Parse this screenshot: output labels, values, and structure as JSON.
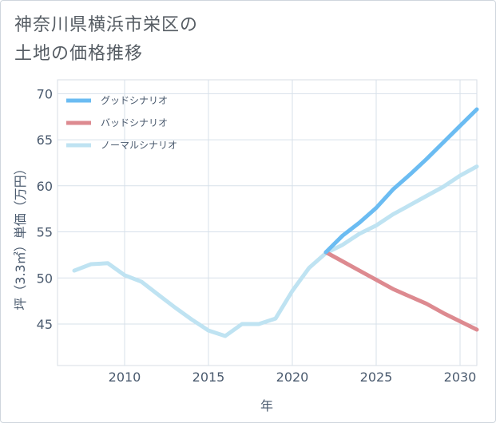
{
  "title": {
    "line1": "神奈川県横浜市栄区の",
    "line2": "土地の価格推移"
  },
  "chart_data": {
    "type": "line",
    "xlabel": "年",
    "ylabel": "坪（3.3㎡）単価（万円）",
    "xlim": [
      2006,
      2031
    ],
    "ylim": [
      40.5,
      71.5
    ],
    "xticks": [
      2010,
      2015,
      2020,
      2025,
      2030
    ],
    "yticks": [
      45,
      50,
      55,
      60,
      65,
      70
    ],
    "grid": true,
    "legend_position": "top-left",
    "series": [
      {
        "name": "グッドシナリオ",
        "color": "#6bbcf2",
        "x": [
          2022,
          2023,
          2024,
          2025,
          2026,
          2027,
          2028,
          2029,
          2030,
          2031
        ],
        "y": [
          52.8,
          54.6,
          56.0,
          57.6,
          59.6,
          61.2,
          62.9,
          64.7,
          66.5,
          68.3
        ]
      },
      {
        "name": "バッドシナリオ",
        "color": "#dd8a90",
        "x": [
          2022,
          2023,
          2024,
          2025,
          2026,
          2027,
          2028,
          2029,
          2030,
          2031
        ],
        "y": [
          52.8,
          51.8,
          50.8,
          49.8,
          48.8,
          48.0,
          47.2,
          46.2,
          45.3,
          44.4
        ]
      },
      {
        "name": "ノーマルシナリオ",
        "color": "#bfe3f2",
        "x": [
          2007,
          2008,
          2009,
          2010,
          2011,
          2012,
          2013,
          2014,
          2015,
          2016,
          2017,
          2018,
          2019,
          2020,
          2021,
          2022,
          2023,
          2024,
          2025,
          2026,
          2027,
          2028,
          2029,
          2030,
          2031
        ],
        "y": [
          50.8,
          51.5,
          51.6,
          50.3,
          49.6,
          48.2,
          46.8,
          45.5,
          44.3,
          43.7,
          45.0,
          45.0,
          45.6,
          48.6,
          51.1,
          52.7,
          53.6,
          54.8,
          55.7,
          56.9,
          57.9,
          58.9,
          59.9,
          61.1,
          62.1
        ]
      }
    ]
  }
}
